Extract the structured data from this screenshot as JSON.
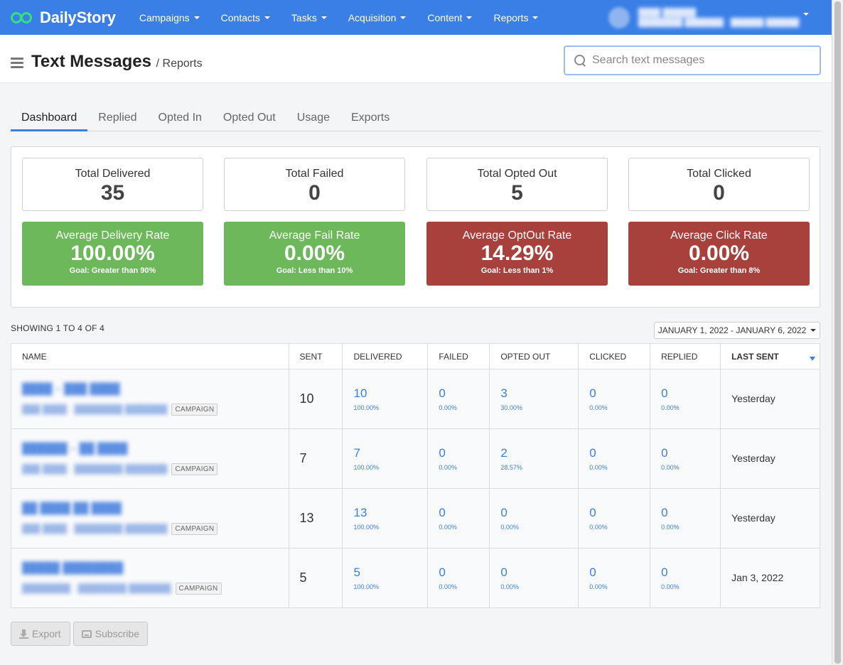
{
  "brand": {
    "name": "DailyStory"
  },
  "nav": {
    "items": [
      {
        "label": "Campaigns"
      },
      {
        "label": "Contacts"
      },
      {
        "label": "Tasks"
      },
      {
        "label": "Acquisition"
      },
      {
        "label": "Content"
      },
      {
        "label": "Reports"
      }
    ]
  },
  "header": {
    "title": "Text Messages",
    "breadcrumb": "/ Reports"
  },
  "search": {
    "placeholder": "Search text messages",
    "value": ""
  },
  "tabs": [
    {
      "label": "Dashboard",
      "active": true
    },
    {
      "label": "Replied"
    },
    {
      "label": "Opted In"
    },
    {
      "label": "Opted Out"
    },
    {
      "label": "Usage"
    },
    {
      "label": "Exports"
    }
  ],
  "stats": [
    {
      "label": "Total Delivered",
      "value": "35"
    },
    {
      "label": "Total Failed",
      "value": "0"
    },
    {
      "label": "Total Opted Out",
      "value": "5"
    },
    {
      "label": "Total Clicked",
      "value": "0"
    }
  ],
  "rates": [
    {
      "label": "Average Delivery Rate",
      "value": "100.00%",
      "goal": "Goal: Greater than 90%",
      "status": "green"
    },
    {
      "label": "Average Fail Rate",
      "value": "0.00%",
      "goal": "Goal: Less than 10%",
      "status": "green"
    },
    {
      "label": "Average OptOut Rate",
      "value": "14.29%",
      "goal": "Goal: Less than 1%",
      "status": "red"
    },
    {
      "label": "Average Click Rate",
      "value": "0.00%",
      "goal": "Goal: Greater than 8%",
      "status": "red"
    }
  ],
  "colors": {
    "navbar": "#3a7fe6",
    "good": "#6cb85a",
    "bad": "#a8403b",
    "link": "#3a7fe6"
  },
  "table": {
    "showing": "SHOWING 1 TO 4 OF 4",
    "date_range": "JANUARY 1, 2022 - JANUARY 6, 2022",
    "columns": [
      "NAME",
      "SENT",
      "DELIVERED",
      "FAILED",
      "OPTED OUT",
      "CLICKED",
      "REPLIED",
      "LAST SENT"
    ],
    "badge_label": "CAMPAIGN",
    "rows": [
      {
        "sent": "10",
        "delivered": "10",
        "delivered_pct": "100.00%",
        "failed": "0",
        "failed_pct": "0.00%",
        "opted_out": "3",
        "opted_out_pct": "30.00%",
        "clicked": "0",
        "clicked_pct": "0.00%",
        "replied": "0",
        "replied_pct": "0.00%",
        "last_sent": "Yesterday"
      },
      {
        "sent": "7",
        "delivered": "7",
        "delivered_pct": "100.00%",
        "failed": "0",
        "failed_pct": "0.00%",
        "opted_out": "2",
        "opted_out_pct": "28.57%",
        "clicked": "0",
        "clicked_pct": "0.00%",
        "replied": "0",
        "replied_pct": "0.00%",
        "last_sent": "Yesterday"
      },
      {
        "sent": "13",
        "delivered": "13",
        "delivered_pct": "100.00%",
        "failed": "0",
        "failed_pct": "0.00%",
        "opted_out": "0",
        "opted_out_pct": "0.00%",
        "clicked": "0",
        "clicked_pct": "0.00%",
        "replied": "0",
        "replied_pct": "0.00%",
        "last_sent": "Yesterday"
      },
      {
        "sent": "5",
        "delivered": "5",
        "delivered_pct": "100.00%",
        "failed": "0",
        "failed_pct": "0.00%",
        "opted_out": "0",
        "opted_out_pct": "0.00%",
        "clicked": "0",
        "clicked_pct": "0.00%",
        "replied": "0",
        "replied_pct": "0.00%",
        "last_sent": "Jan 3, 2022"
      }
    ]
  },
  "footer": {
    "export_label": "Export",
    "subscribe_label": "Subscribe"
  }
}
